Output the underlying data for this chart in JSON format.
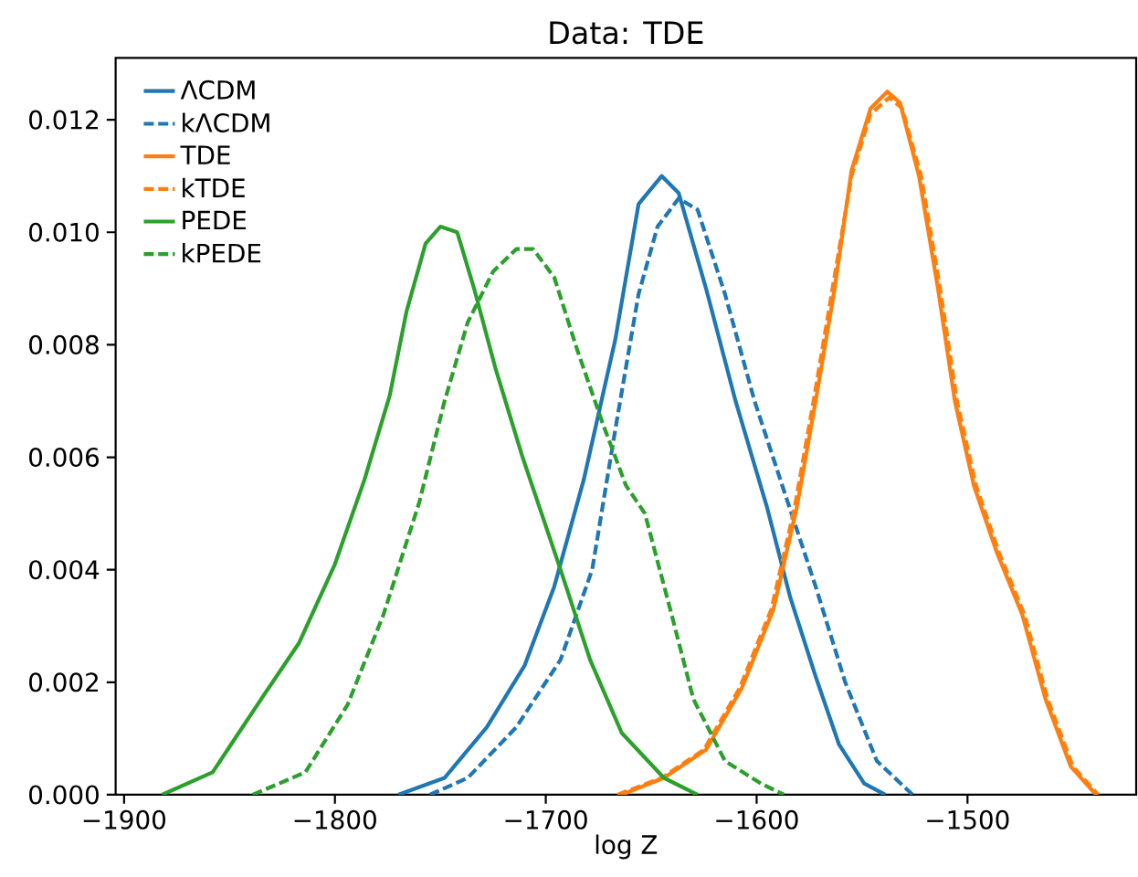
{
  "chart_data": {
    "type": "line",
    "title": "Data: TDE",
    "xlabel": "log Z",
    "legend": "top left",
    "xlim": [
      -1904,
      -1420
    ],
    "ylim": [
      0,
      0.0131
    ],
    "xticks": [
      {
        "value": -1900,
        "label": "−1900"
      },
      {
        "value": -1800,
        "label": "−1800"
      },
      {
        "value": -1700,
        "label": "−1700"
      },
      {
        "value": -1600,
        "label": "−1600"
      },
      {
        "value": -1500,
        "label": "−1500"
      }
    ],
    "yticks": [
      {
        "value": 0,
        "label": "0.000"
      },
      {
        "value": 0.002,
        "label": "0.002"
      },
      {
        "value": 0.004,
        "label": "0.004"
      },
      {
        "value": 0.006,
        "label": "0.006"
      },
      {
        "value": 0.008,
        "label": "0.008"
      },
      {
        "value": 0.01,
        "label": "0.010"
      },
      {
        "value": 0.012,
        "label": "0.012"
      }
    ],
    "series": [
      {
        "name": "ΛCDM",
        "color": "#1f77b4",
        "line_style": "solid",
        "x": [
          -1770,
          -1748,
          -1728,
          -1710,
          -1696,
          -1682,
          -1667,
          -1656,
          -1645,
          -1637,
          -1624,
          -1610,
          -1595,
          -1584,
          -1572,
          -1561,
          -1549,
          -1539
        ],
        "values": [
          0,
          0.0003,
          0.0012,
          0.0023,
          0.0037,
          0.0056,
          0.0081,
          0.0105,
          0.011,
          0.0107,
          0.009,
          0.007,
          0.0051,
          0.0035,
          0.0021,
          0.0009,
          0.0002,
          0
        ]
      },
      {
        "name": "kΛCDM",
        "color": "#1f77b4",
        "line_style": "dashed",
        "x": [
          -1755,
          -1737,
          -1714,
          -1693,
          -1678,
          -1667,
          -1656,
          -1647,
          -1637,
          -1628,
          -1615,
          -1601,
          -1587,
          -1572,
          -1558,
          -1543,
          -1526
        ],
        "values": [
          0,
          0.0003,
          0.0012,
          0.0024,
          0.004,
          0.0065,
          0.0089,
          0.0101,
          0.0106,
          0.0104,
          0.0089,
          0.007,
          0.0054,
          0.0037,
          0.002,
          0.0006,
          0
        ]
      },
      {
        "name": "TDE",
        "color": "#ff7f0e",
        "line_style": "solid",
        "x": [
          -1664,
          -1644,
          -1624,
          -1607,
          -1592,
          -1581,
          -1572,
          -1563,
          -1555,
          -1546,
          -1538,
          -1532,
          -1523,
          -1514,
          -1506,
          -1497,
          -1486,
          -1474,
          -1463,
          -1451,
          -1439
        ],
        "values": [
          0,
          0.0003,
          0.0008,
          0.0019,
          0.0033,
          0.0051,
          0.007,
          0.009,
          0.0111,
          0.0122,
          0.0125,
          0.0123,
          0.011,
          0.009,
          0.007,
          0.0055,
          0.0043,
          0.0032,
          0.0017,
          0.0005,
          0
        ]
      },
      {
        "name": "kTDE",
        "color": "#ff7f0e",
        "line_style": "dashed",
        "x": [
          -1666,
          -1645,
          -1625,
          -1608,
          -1593,
          -1582,
          -1573,
          -1564,
          -1555,
          -1546,
          -1537,
          -1531,
          -1522,
          -1513,
          -1505,
          -1496,
          -1485,
          -1473,
          -1462,
          -1450,
          -1438
        ],
        "values": [
          0,
          0.0003,
          0.0008,
          0.0019,
          0.0033,
          0.0051,
          0.007,
          0.009,
          0.011,
          0.0121,
          0.0124,
          0.0122,
          0.011,
          0.009,
          0.007,
          0.0055,
          0.0043,
          0.0032,
          0.0017,
          0.0005,
          0
        ]
      },
      {
        "name": "PEDE",
        "color": "#2ca02c",
        "line_style": "solid",
        "x": [
          -1882,
          -1858,
          -1835,
          -1817,
          -1800,
          -1786,
          -1774,
          -1766,
          -1757,
          -1750,
          -1742,
          -1734,
          -1724,
          -1711,
          -1693,
          -1679,
          -1664,
          -1644,
          -1628
        ],
        "values": [
          0,
          0.0004,
          0.0017,
          0.0027,
          0.0041,
          0.0056,
          0.0071,
          0.0086,
          0.0098,
          0.0101,
          0.01,
          0.009,
          0.0076,
          0.006,
          0.004,
          0.0024,
          0.0011,
          0.0003,
          0
        ]
      },
      {
        "name": "kPEDE",
        "color": "#2ca02c",
        "line_style": "dashed",
        "x": [
          -1839,
          -1814,
          -1794,
          -1777,
          -1760,
          -1748,
          -1737,
          -1725,
          -1714,
          -1706,
          -1696,
          -1685,
          -1673,
          -1662,
          -1653,
          -1641,
          -1630,
          -1615,
          -1598,
          -1587
        ],
        "values": [
          0,
          0.0004,
          0.0016,
          0.0032,
          0.0052,
          0.007,
          0.0084,
          0.0093,
          0.0097,
          0.0097,
          0.0092,
          0.0079,
          0.0066,
          0.0055,
          0.005,
          0.0033,
          0.0017,
          0.0006,
          0.0002,
          0
        ]
      }
    ]
  }
}
